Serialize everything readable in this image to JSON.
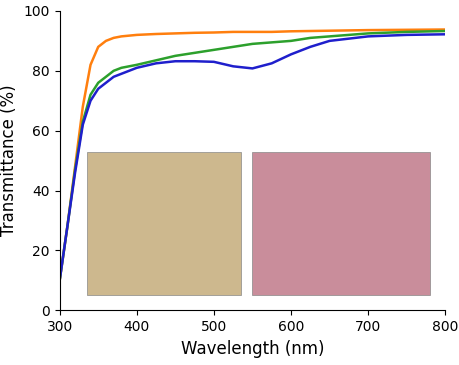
{
  "chart_data": {
    "type": "line",
    "x_label": "Wavelength (nm)",
    "y_label": "Transmittance (%)",
    "x": [
      300,
      310,
      320,
      330,
      340,
      350,
      360,
      370,
      380,
      400,
      425,
      450,
      475,
      500,
      525,
      550,
      575,
      600,
      625,
      650,
      700,
      750,
      800
    ],
    "series": [
      {
        "color": "#ff7f0e",
        "values": [
          10,
          28,
          48,
          68,
          82,
          88,
          90,
          91,
          91.5,
          92,
          92.3,
          92.5,
          92.7,
          92.8,
          93,
          93,
          93,
          93.2,
          93.3,
          93.4,
          93.6,
          93.7,
          93.8
        ]
      },
      {
        "color": "#2ca02c",
        "values": [
          10,
          28,
          47,
          63,
          72,
          76,
          78,
          80,
          81,
          82,
          83.5,
          85,
          86,
          87,
          88,
          89,
          89.5,
          90,
          91,
          91.5,
          92.5,
          93,
          93.3
        ]
      },
      {
        "color": "#1f1fcc",
        "values": [
          10,
          28,
          46,
          62,
          70,
          74,
          76,
          78,
          79,
          81,
          82.5,
          83.2,
          83.2,
          83,
          81.5,
          80.8,
          82.5,
          85.5,
          88,
          90,
          91.5,
          92,
          92.2
        ]
      }
    ],
    "xlim": [
      300,
      800
    ],
    "xticks": [
      300,
      400,
      500,
      600,
      700,
      800
    ],
    "ylim": [
      0,
      100
    ],
    "yticks": [
      0,
      20,
      40,
      60,
      80,
      100
    ],
    "grid": false
  }
}
